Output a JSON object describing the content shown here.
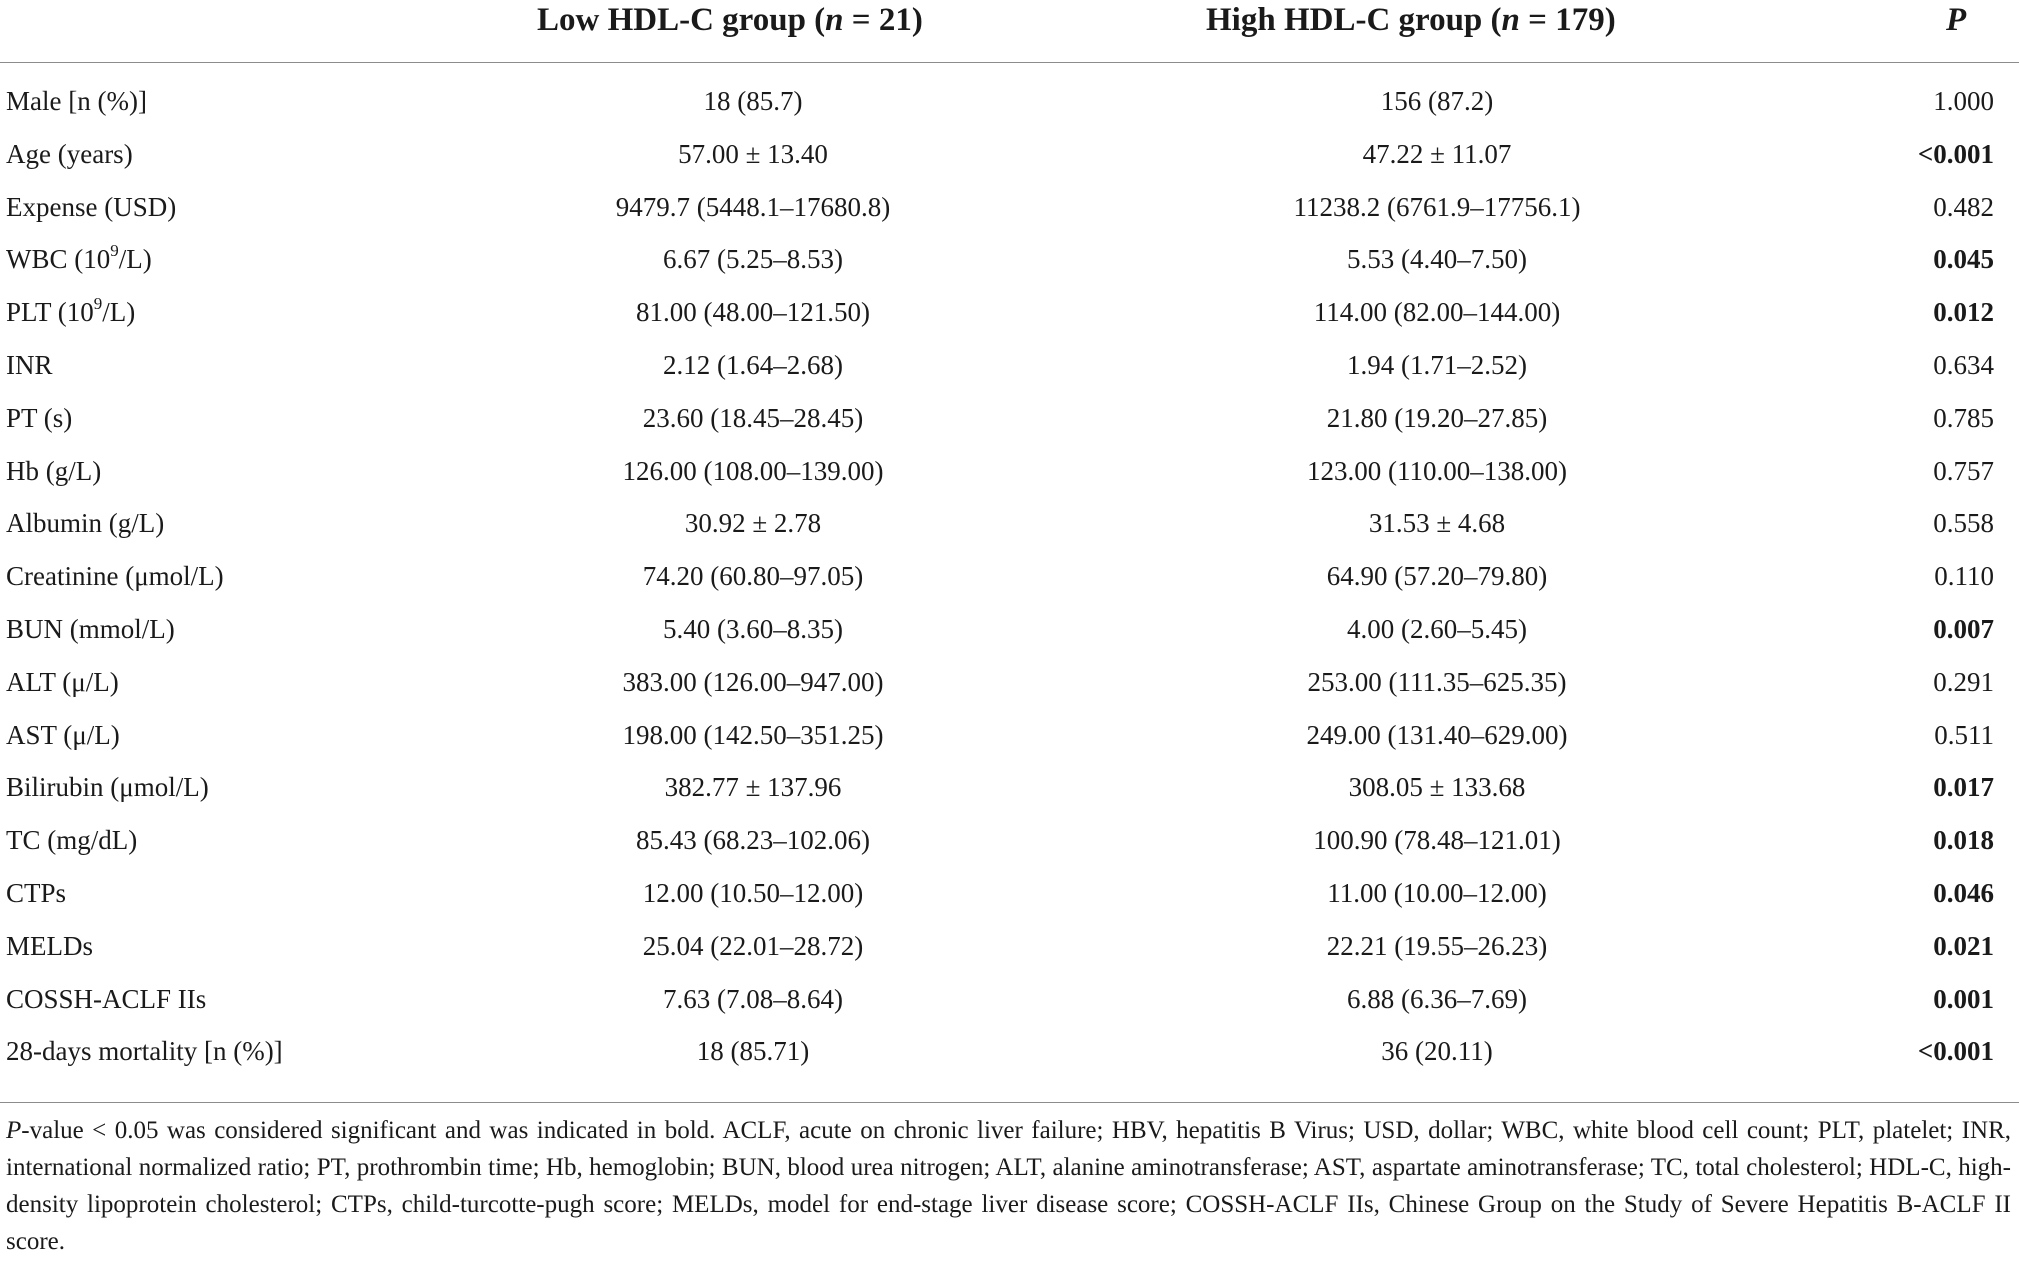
{
  "table": {
    "headers": {
      "low": {
        "label": "Low HDL-C group (",
        "n_symbol": "n",
        "n_text": " = 21)"
      },
      "high": {
        "label": "High HDL-C group (",
        "n_symbol": "n",
        "n_text": " = 179)"
      },
      "p": "P"
    },
    "rows": [
      {
        "variable": "Male [n (%)]",
        "low": "18 (85.7)",
        "high": "156 (87.2)",
        "p": "1.000",
        "bold": false
      },
      {
        "variable": "Age (years)",
        "low": "57.00 ± 13.40",
        "high": "47.22 ± 11.07",
        "p": "<0.001",
        "bold": true
      },
      {
        "variable": "Expense (USD)",
        "low": "9479.7 (5448.1–17680.8)",
        "high": "11238.2 (6761.9–17756.1)",
        "p": "0.482",
        "bold": false
      },
      {
        "variable": "WBC (10",
        "sup": "9",
        "suffix": "/L)",
        "low": "6.67 (5.25–8.53)",
        "high": "5.53 (4.40–7.50)",
        "p": "0.045",
        "bold": true
      },
      {
        "variable": "PLT (10",
        "sup": "9",
        "suffix": "/L)",
        "low": "81.00 (48.00–121.50)",
        "high": "114.00 (82.00–144.00)",
        "p": "0.012",
        "bold": true
      },
      {
        "variable": "INR",
        "low": "2.12 (1.64–2.68)",
        "high": "1.94 (1.71–2.52)",
        "p": "0.634",
        "bold": false
      },
      {
        "variable": "PT (s)",
        "low": "23.60 (18.45–28.45)",
        "high": "21.80 (19.20–27.85)",
        "p": "0.785",
        "bold": false
      },
      {
        "variable": "Hb (g/L)",
        "low": "126.00 (108.00–139.00)",
        "high": "123.00 (110.00–138.00)",
        "p": "0.757",
        "bold": false
      },
      {
        "variable": "Albumin (g/L)",
        "low": "30.92 ± 2.78",
        "high": "31.53 ± 4.68",
        "p": "0.558",
        "bold": false
      },
      {
        "variable": "Creatinine (μmol/L)",
        "low": "74.20 (60.80–97.05)",
        "high": "64.90 (57.20–79.80)",
        "p": "0.110",
        "bold": false
      },
      {
        "variable": "BUN (mmol/L)",
        "low": "5.40 (3.60–8.35)",
        "high": "4.00 (2.60–5.45)",
        "p": "0.007",
        "bold": true
      },
      {
        "variable": "ALT (μ/L)",
        "low": "383.00 (126.00–947.00)",
        "high": "253.00 (111.35–625.35)",
        "p": "0.291",
        "bold": false
      },
      {
        "variable": "AST (μ/L)",
        "low": "198.00 (142.50–351.25)",
        "high": "249.00 (131.40–629.00)",
        "p": "0.511",
        "bold": false
      },
      {
        "variable": "Bilirubin (μmol/L)",
        "low": "382.77 ± 137.96",
        "high": "308.05 ± 133.68",
        "p": "0.017",
        "bold": true
      },
      {
        "variable": "TC (mg/dL)",
        "low": "85.43 (68.23–102.06)",
        "high": "100.90 (78.48–121.01)",
        "p": "0.018",
        "bold": true
      },
      {
        "variable": "CTPs",
        "low": "12.00 (10.50–12.00)",
        "high": "11.00 (10.00–12.00)",
        "p": "0.046",
        "bold": true
      },
      {
        "variable": "MELDs",
        "low": "25.04 (22.01–28.72)",
        "high": "22.21 (19.55–26.23)",
        "p": "0.021",
        "bold": true
      },
      {
        "variable": "COSSH-ACLF IIs",
        "low": "7.63 (7.08–8.64)",
        "high": "6.88 (6.36–7.69)",
        "p": "0.001",
        "bold": true
      },
      {
        "variable": "28-days mortality [n (%)]",
        "low": "18 (85.71)",
        "high": "36 (20.11)",
        "p": "<0.001",
        "bold": true
      }
    ]
  },
  "footnote": {
    "lead": "P",
    "text": "-value < 0.05 was considered significant and was indicated in bold. ACLF, acute on chronic liver failure; HBV, hepatitis B Virus; USD, dollar; WBC, white blood cell count; PLT, platelet; INR, international normalized ratio; PT, prothrombin time; Hb, hemoglobin; BUN, blood urea nitrogen; ALT, alanine aminotransferase; AST, aspartate aminotransferase; TC, total cholesterol; HDL-C, high-density lipoprotein cholesterol; CTPs, child-turcotte-pugh score; MELDs, model for end-stage liver disease score; COSSH-ACLF IIs, Chinese Group on the Study of Severe Hepatitis B-ACLF II score."
  }
}
